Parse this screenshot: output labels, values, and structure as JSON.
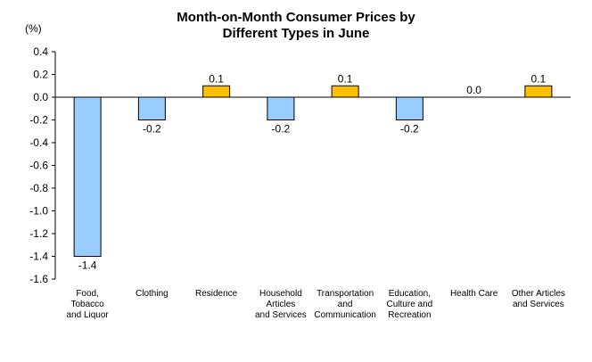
{
  "chart_data": {
    "type": "bar",
    "title_line1": "Month-on-Month Consumer Prices by",
    "title_line2": "Different Types in June",
    "unit_label": "(%)",
    "categories": [
      [
        "Food,",
        "Tobacco",
        "and Liquor"
      ],
      [
        "Clothing"
      ],
      [
        "Residence"
      ],
      [
        "Household",
        "Articles",
        "and Services"
      ],
      [
        "Transportation",
        "and",
        "Communication"
      ],
      [
        "Education,",
        "Culture and",
        "Recreation"
      ],
      [
        "Health Care"
      ],
      [
        "Other Articles",
        "and Services"
      ]
    ],
    "values": [
      -1.4,
      -0.2,
      0.1,
      -0.2,
      0.1,
      -0.2,
      0.0,
      0.1
    ],
    "value_labels": [
      "-1.4",
      "-0.2",
      "0.1",
      "-0.2",
      "0.1",
      "-0.2",
      "0.0",
      "0.1"
    ],
    "ylim": [
      -1.6,
      0.4
    ],
    "yticks": [
      0.4,
      0.2,
      0.0,
      -0.2,
      -0.4,
      -0.6,
      -0.8,
      -1.0,
      -1.2,
      -1.4,
      -1.6
    ],
    "ytick_labels": [
      "0.4",
      "0.2",
      "0.0",
      "-0.2",
      "-0.4",
      "-0.6",
      "-0.8",
      "-1.0",
      "-1.2",
      "-1.4",
      "-1.6"
    ],
    "colors": {
      "negative": "#99CCFF",
      "positive": "#FFC000",
      "outline": "#000000"
    },
    "grid": false,
    "legend": "none"
  }
}
